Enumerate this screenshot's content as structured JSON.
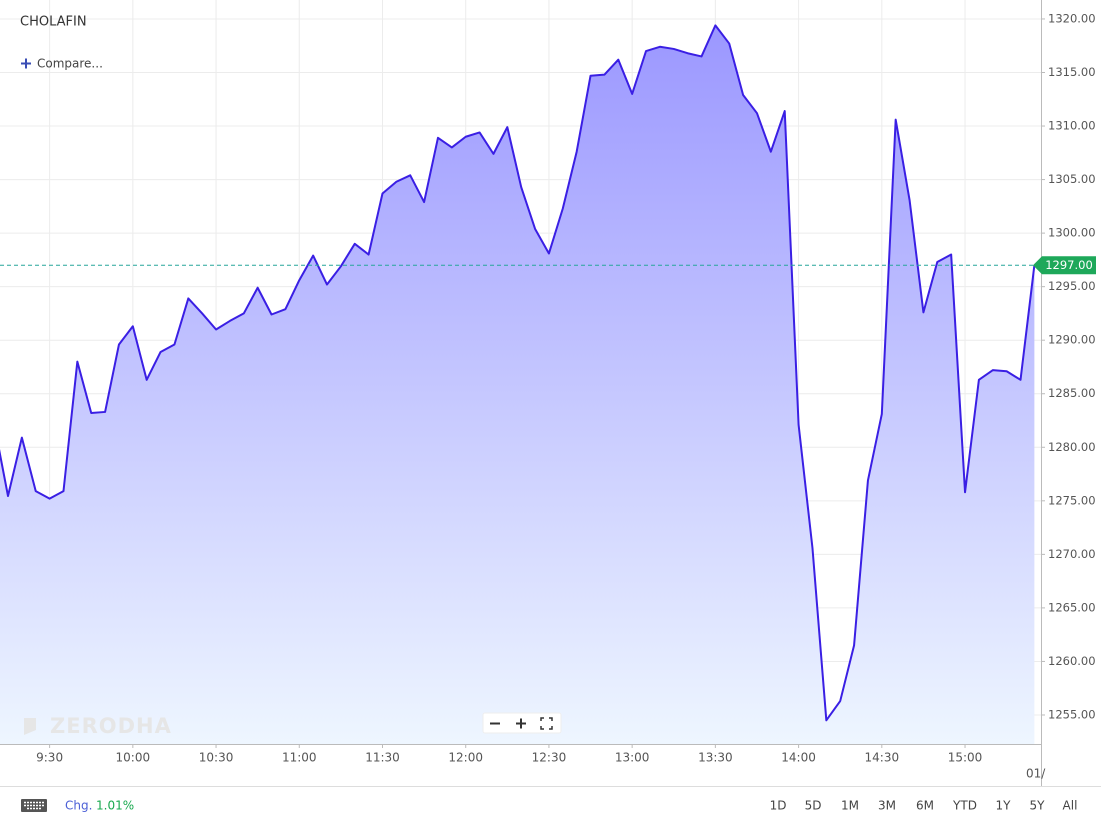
{
  "header": {
    "symbol": "CHOLAFIN",
    "compare": "Compare..."
  },
  "watermark": "ZERODHA",
  "chart_data": {
    "type": "area",
    "categories": [
      null,
      null,
      null,
      null,
      "9:30",
      null,
      null,
      null,
      null,
      null,
      "10:00",
      null,
      null,
      null,
      null,
      null,
      "10:30",
      null,
      null,
      null,
      null,
      null,
      "11:00",
      null,
      null,
      null,
      null,
      null,
      "11:30",
      null,
      null,
      null,
      null,
      null,
      "12:00",
      null,
      null,
      null,
      null,
      null,
      "12:30",
      null,
      null,
      null,
      null,
      null,
      "13:00",
      null,
      null,
      null,
      null,
      null,
      "13:30",
      null,
      null,
      null,
      null,
      null,
      "14:00",
      null,
      null,
      null,
      null,
      null,
      "14:30",
      null,
      null,
      null,
      null,
      null,
      "15:00",
      null,
      null,
      null,
      null,
      null
    ],
    "series": [
      {
        "color": "#3a1fe4",
        "values": [
          1282.2,
          1275.45,
          1280.9,
          1275.9,
          1275.2,
          1275.9,
          1288.0,
          1283.2,
          1283.3,
          1289.6,
          1291.3,
          1286.3,
          1288.9,
          1289.6,
          1293.9,
          1292.5,
          1291.0,
          1291.8,
          1292.5,
          1294.9,
          1292.4,
          1292.9,
          1295.6,
          1297.9,
          1295.2,
          1296.9,
          1299.0,
          1298.0,
          1303.7,
          1304.8,
          1305.4,
          1302.9,
          1308.9,
          1308.0,
          1309.0,
          1309.4,
          1307.4,
          1309.9,
          1304.3,
          1300.4,
          1298.1,
          1302.3,
          1307.6,
          1314.7,
          1314.8,
          1316.2,
          1313.0,
          1317.0,
          1317.4,
          1317.2,
          1316.8,
          1316.5,
          1319.4,
          1317.7,
          1312.9,
          1311.2,
          1307.6,
          1311.4,
          1282.1,
          1270.6,
          1254.5,
          1256.3,
          1261.5,
          1276.9,
          1283.1,
          1310.6,
          1303.1,
          1292.6,
          1297.3,
          1298.0,
          1275.8,
          1286.3,
          1287.2,
          1287.1,
          1286.3,
          1297.0
        ]
      }
    ],
    "ylim": [
      1252.29,
      1321.77
    ],
    "yticks": [
      {
        "value": 1255,
        "label": "1255.00"
      },
      {
        "value": 1260,
        "label": "1260.00"
      },
      {
        "value": 1265,
        "label": "1265.00"
      },
      {
        "value": 1270,
        "label": "1270.00"
      },
      {
        "value": 1275,
        "label": "1275.00"
      },
      {
        "value": 1280,
        "label": "1280.00"
      },
      {
        "value": 1285,
        "label": "1285.00"
      },
      {
        "value": 1290,
        "label": "1290.00"
      },
      {
        "value": 1295,
        "label": "1295.00"
      },
      {
        "value": 1300,
        "label": "1300.00"
      },
      {
        "value": 1305,
        "label": "1305.00"
      },
      {
        "value": 1310,
        "label": "1310.00"
      },
      {
        "value": 1315,
        "label": "1315.00"
      },
      {
        "value": 1320,
        "label": "1320.00"
      }
    ],
    "last_price": {
      "value": 1297,
      "label": "1297.00"
    },
    "date_label": "01/",
    "grid": true
  },
  "footer": {
    "change_label": "Chg.",
    "change_value": "1.01%",
    "ranges": [
      "1D",
      "5D",
      "1M",
      "3M",
      "6M",
      "YTD",
      "1Y",
      "5Y",
      "All"
    ]
  }
}
